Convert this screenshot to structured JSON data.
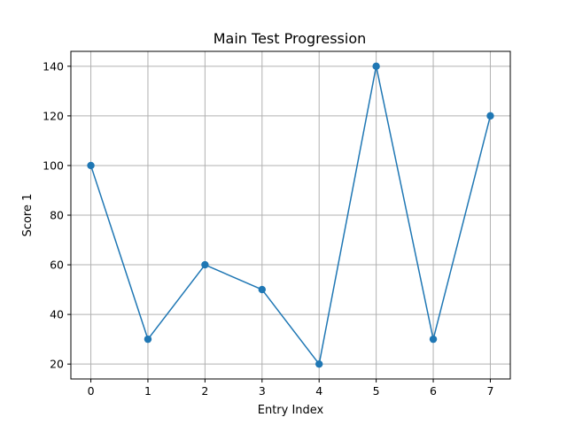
{
  "chart_data": {
    "type": "line",
    "title": "Main Test Progression",
    "xlabel": "Entry Index",
    "ylabel": "Score 1",
    "x": [
      0,
      1,
      2,
      3,
      4,
      5,
      6,
      7
    ],
    "series": [
      {
        "values": [
          100,
          30,
          60,
          50,
          20,
          140,
          30,
          120
        ],
        "color": "#1f77b4",
        "marker": "circle"
      }
    ],
    "xlim": [
      -0.35,
      7.35
    ],
    "ylim": [
      14,
      146
    ],
    "x_ticks": [
      0,
      1,
      2,
      3,
      4,
      5,
      6,
      7
    ],
    "y_ticks": [
      20,
      40,
      60,
      80,
      100,
      120,
      140
    ],
    "grid": true,
    "grid_color": "#b0b0b0"
  }
}
